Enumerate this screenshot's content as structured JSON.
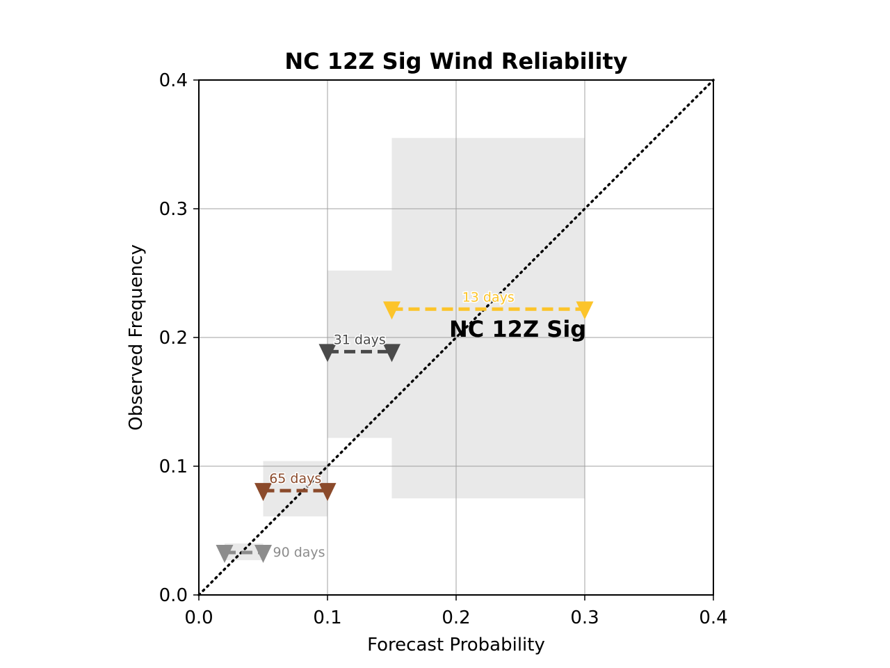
{
  "chart_data": {
    "type": "scatter",
    "title": "NC 12Z Sig Wind Reliability",
    "xlabel": "Forecast Probability",
    "ylabel": "Observed Frequency",
    "xlim": [
      0.0,
      0.4
    ],
    "ylim": [
      0.0,
      0.4
    ],
    "xticks": [
      "0.0",
      "0.1",
      "0.2",
      "0.3",
      "0.4"
    ],
    "yticks": [
      "0.0",
      "0.1",
      "0.2",
      "0.3",
      "0.4"
    ],
    "grid": true,
    "diagonal": "dotted 1:1 perfect reliability line",
    "annotation": "NC 12Z Sig",
    "series": [
      {
        "bin": [
          0.02,
          0.05
        ],
        "observed": 0.033,
        "ci": [
          0.027,
          0.04
        ],
        "label": "90 days",
        "color": "#8c8c8c"
      },
      {
        "bin": [
          0.05,
          0.1
        ],
        "observed": 0.081,
        "ci": [
          0.061,
          0.104
        ],
        "label": "65 days",
        "color": "#8b4a2b"
      },
      {
        "bin": [
          0.1,
          0.15
        ],
        "observed": 0.189,
        "ci": [
          0.122,
          0.252
        ],
        "label": "31 days",
        "color": "#4a4a4a"
      },
      {
        "bin": [
          0.15,
          0.3
        ],
        "observed": 0.222,
        "ci": [
          0.075,
          0.355
        ],
        "label": "13 days",
        "color": "#fcc42a"
      }
    ]
  }
}
